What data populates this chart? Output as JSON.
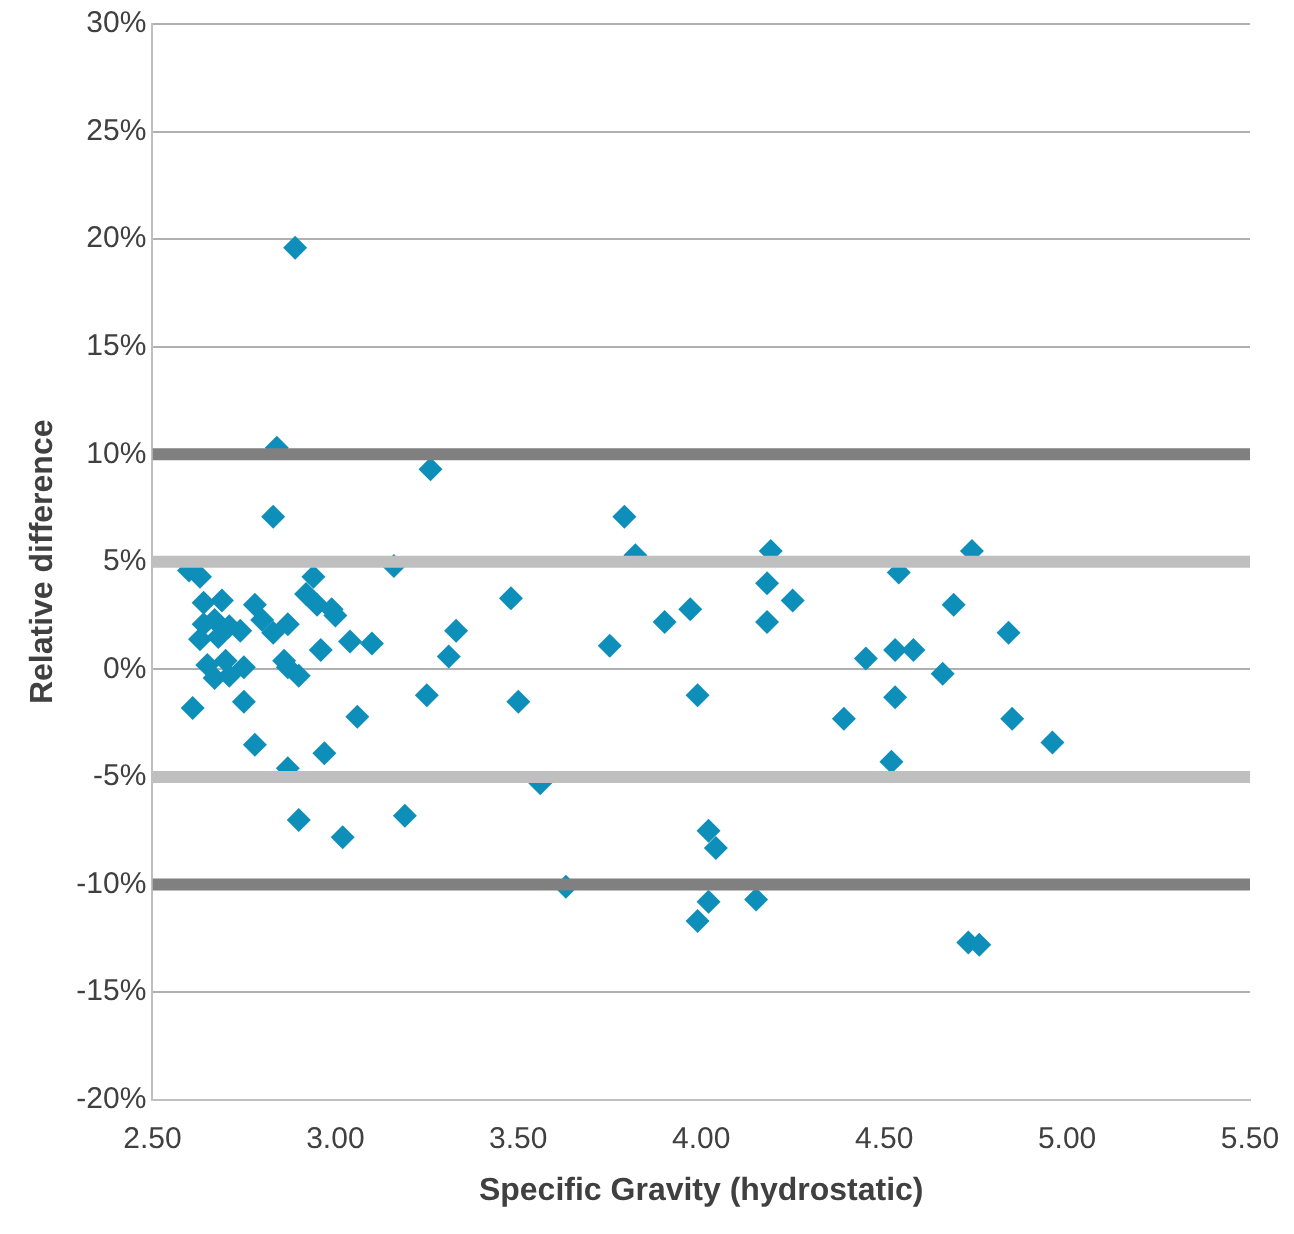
{
  "chart_data": {
    "type": "scatter",
    "xlabel": "Specific Gravity (hydrostatic)",
    "ylabel": "Relative difference",
    "marker": "diamond",
    "grid": "y",
    "legend": false,
    "xlim": [
      2.5,
      5.5
    ],
    "xticks": [
      {
        "value": 2.5,
        "label": "2.50"
      },
      {
        "value": 3,
        "label": "3.00"
      },
      {
        "value": 3.5,
        "label": "3.50"
      },
      {
        "value": 4,
        "label": "4.00"
      },
      {
        "value": 4.5,
        "label": "4.50"
      },
      {
        "value": 5,
        "label": "5.00"
      },
      {
        "value": 5.5,
        "label": "5.50"
      }
    ],
    "ylim": [
      -20,
      30
    ],
    "yticks": [
      {
        "value": -20,
        "label": "-20%"
      },
      {
        "value": -15,
        "label": "-15%"
      },
      {
        "value": -10,
        "label": "-10%"
      },
      {
        "value": -5,
        "label": "-5%"
      },
      {
        "value": 0,
        "label": "0%"
      },
      {
        "value": 5,
        "label": "5%"
      },
      {
        "value": 10,
        "label": "10%"
      },
      {
        "value": 15,
        "label": "15%"
      },
      {
        "value": 20,
        "label": "20%"
      },
      {
        "value": 25,
        "label": "25%"
      },
      {
        "value": 30,
        "label": "30%"
      }
    ],
    "series": [
      {
        "type": "line",
        "marker": "none",
        "color": "#808080",
        "x": [
          2.5,
          5.5
        ],
        "values": [
          10,
          10
        ]
      },
      {
        "type": "line",
        "marker": "none",
        "color": "#808080",
        "x": [
          2.5,
          5.5
        ],
        "values": [
          -10,
          -10
        ]
      },
      {
        "type": "line",
        "marker": "none",
        "color": "#bfbfbf",
        "x": [
          2.5,
          5.5
        ],
        "values": [
          5,
          5
        ]
      },
      {
        "type": "line",
        "marker": "none",
        "color": "#bfbfbf",
        "x": [
          2.5,
          5.5
        ],
        "values": [
          -5,
          -5
        ]
      },
      {
        "color": "#0e8fba",
        "x": [
          2.89,
          2.84,
          3.26,
          2.83,
          3.79,
          3.82,
          3.16,
          2.94,
          2.63,
          2.6,
          2.64,
          2.69,
          2.78,
          3.48,
          2.92,
          2.95,
          2.99,
          3.0,
          3.97,
          3.9,
          3.33,
          2.64,
          2.67,
          2.71,
          2.74,
          2.8,
          2.83,
          2.87,
          2.63,
          2.68,
          3.04,
          3.1,
          3.75,
          2.96,
          3.31,
          2.65,
          2.7,
          2.75,
          2.86,
          2.87,
          2.67,
          2.71,
          2.9,
          2.61,
          2.75,
          3.06,
          3.25,
          3.5,
          3.99,
          2.78,
          2.97,
          2.87,
          2.9,
          3.02,
          3.19,
          3.56,
          3.63,
          4.19,
          4.74,
          4.54,
          4.18,
          4.25,
          4.69,
          4.18,
          4.84,
          4.45,
          4.53,
          4.58,
          4.66,
          4.39,
          4.53,
          4.85,
          4.96,
          4.52,
          4.02,
          4.04,
          4.02,
          3.99,
          4.15,
          4.73,
          4.76
        ],
        "values": [
          19.6,
          10.3,
          9.3,
          7.1,
          7.1,
          5.3,
          4.8,
          4.3,
          4.3,
          4.6,
          3.1,
          3.2,
          3.0,
          3.3,
          3.5,
          3.0,
          2.8,
          2.5,
          2.8,
          2.2,
          1.8,
          2.1,
          2.3,
          2.0,
          1.8,
          2.3,
          1.7,
          2.1,
          1.4,
          1.5,
          1.3,
          1.2,
          1.1,
          0.9,
          0.6,
          0.2,
          0.4,
          0.1,
          0.4,
          0.1,
          -0.4,
          -0.3,
          -0.3,
          -1.8,
          -1.5,
          -2.2,
          -1.2,
          -1.5,
          -1.2,
          -3.5,
          -3.9,
          -4.6,
          -7.0,
          -7.8,
          -6.8,
          -5.3,
          -10.1,
          5.5,
          5.5,
          4.5,
          4.0,
          3.2,
          3.0,
          2.2,
          1.7,
          0.5,
          0.9,
          0.9,
          -0.2,
          -2.3,
          -1.3,
          -2.3,
          -3.4,
          -4.3,
          -7.5,
          -8.3,
          -10.8,
          -11.7,
          -10.7,
          -12.7,
          -12.8
        ]
      }
    ]
  }
}
